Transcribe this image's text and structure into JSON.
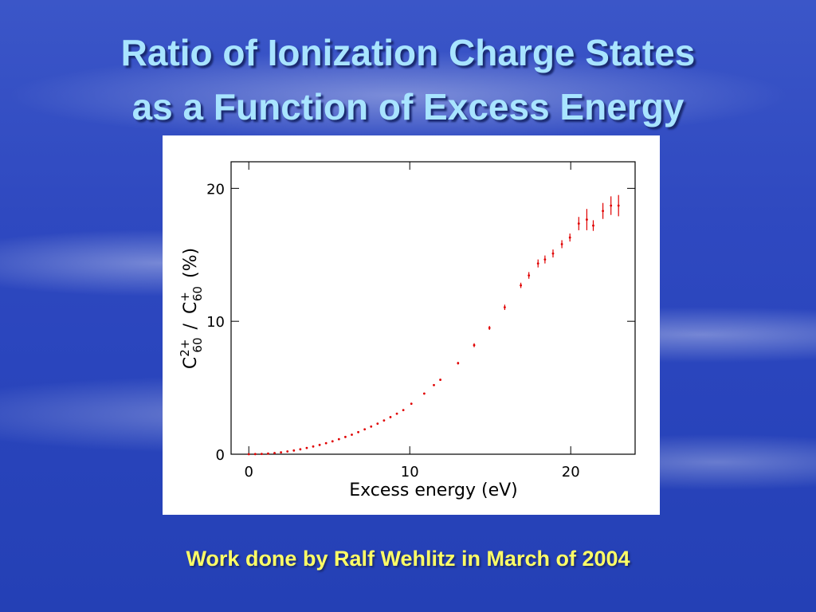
{
  "slide": {
    "title_lines": [
      "Ratio of Ionization Charge States",
      "as a Function of Excess Energy"
    ],
    "footer": "Work done by Ralf Wehlitz in March of 2004"
  },
  "chart_data": {
    "type": "scatter",
    "x_label": "Excess energy (eV)",
    "y_label_parts": [
      "C",
      "2+",
      "60",
      "/",
      "C",
      "+",
      "60",
      "(%)"
    ],
    "xlim": [
      -1.1,
      24
    ],
    "ylim": [
      0,
      22
    ],
    "xticks": [
      0,
      10,
      20
    ],
    "yticks": [
      0,
      10,
      20
    ],
    "series": [
      {
        "color": "#e00000",
        "x": [
          0,
          0.4,
          0.8,
          1.2,
          1.6,
          2.0,
          2.4,
          2.8,
          3.2,
          3.6,
          4.0,
          4.4,
          4.8,
          5.2,
          5.6,
          6.0,
          6.4,
          6.8,
          7.2,
          7.6,
          8.0,
          8.4,
          8.8,
          9.2,
          9.6,
          10.1,
          10.9,
          11.5,
          11.9,
          13.0,
          14.0,
          14.95,
          15.9,
          16.9,
          17.4,
          17.97,
          18.4,
          18.9,
          19.45,
          19.95,
          20.5,
          21.0,
          21.4,
          22.0,
          22.5,
          22.97
        ],
        "values": [
          0,
          0.01,
          0.02,
          0.05,
          0.09,
          0.14,
          0.21,
          0.28,
          0.37,
          0.47,
          0.58,
          0.7,
          0.83,
          0.97,
          1.13,
          1.3,
          1.47,
          1.66,
          1.87,
          2.08,
          2.3,
          2.54,
          2.79,
          3.05,
          3.32,
          3.8,
          4.56,
          5.2,
          5.6,
          6.85,
          8.2,
          9.5,
          11.05,
          12.7,
          13.45,
          14.35,
          14.65,
          15.1,
          15.8,
          16.3,
          17.35,
          17.65,
          17.2,
          18.3,
          18.7,
          18.7
        ],
        "errors": [
          0.05,
          0.05,
          0.05,
          0.05,
          0.05,
          0.05,
          0.05,
          0.05,
          0.05,
          0.05,
          0.05,
          0.05,
          0.05,
          0.05,
          0.05,
          0.05,
          0.05,
          0.05,
          0.05,
          0.05,
          0.05,
          0.05,
          0.05,
          0.05,
          0.05,
          0.05,
          0.05,
          0.05,
          0.05,
          0.1,
          0.15,
          0.15,
          0.2,
          0.2,
          0.25,
          0.3,
          0.3,
          0.3,
          0.3,
          0.3,
          0.5,
          0.8,
          0.4,
          0.6,
          0.7,
          0.8
        ]
      }
    ]
  }
}
